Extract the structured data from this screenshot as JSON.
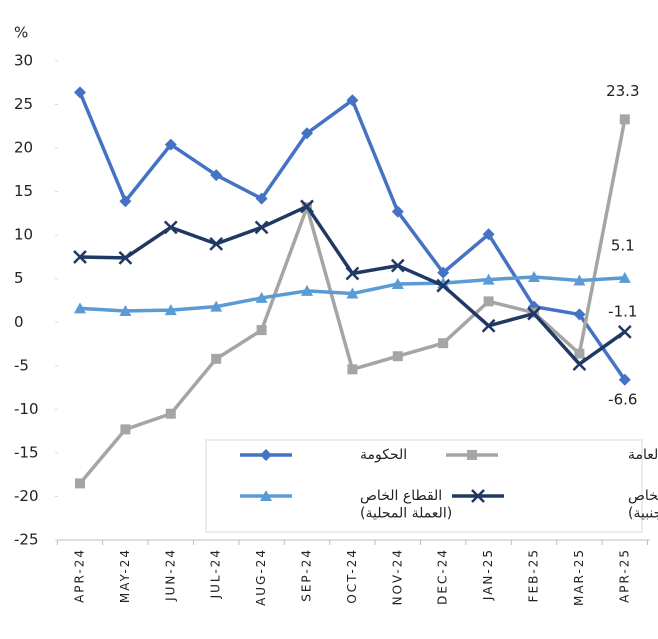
{
  "chart_data": {
    "type": "line",
    "y_label": "%",
    "categories": [
      "APR-24",
      "MAY-24",
      "JUN-24",
      "JUL-24",
      "AUG-24",
      "SEP-24",
      "OCT-24",
      "NOV-24",
      "DEC-24",
      "JAN-25",
      "FEB-25",
      "MAR-25",
      "APR-25"
    ],
    "ylim": [
      -25,
      30
    ],
    "yticks": [
      -25,
      -20,
      -15,
      -10,
      -5,
      0,
      5,
      10,
      15,
      20,
      25,
      30
    ],
    "label_last": true,
    "series": [
      {
        "name": "الحكومة",
        "color": "#4472c4",
        "marker": "diamond",
        "values": [
          26.4,
          13.9,
          20.4,
          16.9,
          14.2,
          21.7,
          25.5,
          12.7,
          5.7,
          10.1,
          1.8,
          0.9,
          -6.6
        ]
      },
      {
        "name": "المؤسسات العامة",
        "color": "#a5a5a5",
        "marker": "square",
        "values": [
          -18.5,
          -12.3,
          -10.5,
          -4.2,
          -0.9,
          13.2,
          -5.4,
          -3.9,
          -2.4,
          2.4,
          1.1,
          -3.6,
          23.3
        ]
      },
      {
        "name": "القطاع الخاص\n(العملة المحلية)",
        "color": "#5b9bd5",
        "marker": "triangle",
        "values": [
          1.6,
          1.3,
          1.4,
          1.8,
          2.8,
          3.6,
          3.3,
          4.4,
          4.5,
          4.9,
          5.2,
          4.8,
          5.1
        ]
      },
      {
        "name": "القطاع الخاص\n(العملات الأجنبية)",
        "color": "#203864",
        "marker": "x",
        "values": [
          7.5,
          7.4,
          10.9,
          9.0,
          10.9,
          13.3,
          5.6,
          6.5,
          4.2,
          -0.4,
          1.0,
          -4.8,
          -1.1
        ]
      }
    ]
  }
}
